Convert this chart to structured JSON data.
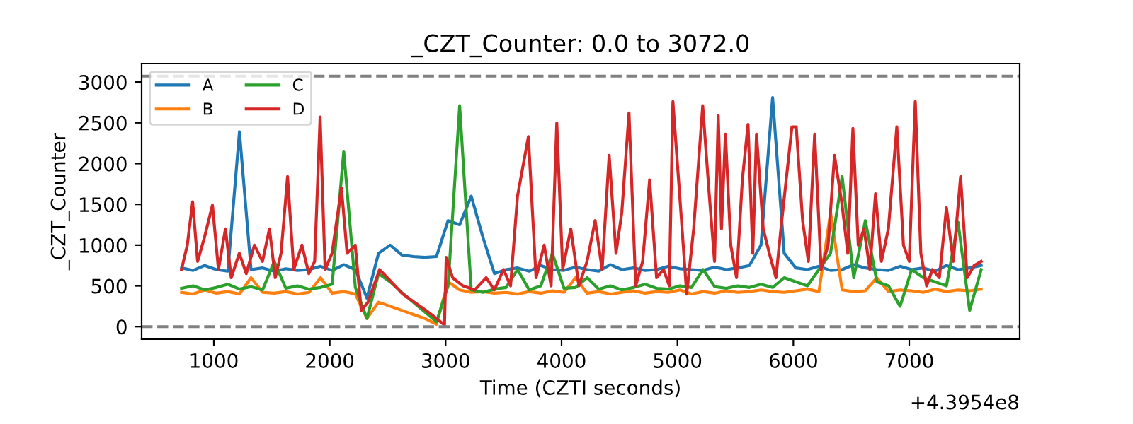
{
  "chart_data": {
    "type": "line",
    "title": "_CZT_Counter: 0.0 to 3072.0",
    "xlabel": "Time (CZTI seconds)",
    "ylabel": "_CZT_Counter",
    "annotations": [
      "+4.3954e8"
    ],
    "x": [
      721,
      821,
      921,
      1021,
      1121,
      1221,
      1321,
      1421,
      1521,
      1621,
      1721,
      1821,
      1921,
      2021,
      2121,
      2221,
      2321,
      2421,
      2521,
      2621,
      2721,
      2821,
      2921,
      3021,
      3121,
      3221,
      3321,
      3421,
      3521,
      3621,
      3721,
      3821,
      3921,
      4021,
      4121,
      4221,
      4321,
      4421,
      4521,
      4621,
      4721,
      4821,
      4921,
      5021,
      5121,
      5221,
      5321,
      5421,
      5521,
      5621,
      5721,
      5821,
      5921,
      6021,
      6121,
      6221,
      6321,
      6421,
      6521,
      6621,
      6721,
      6821,
      6921,
      7021,
      7121,
      7221,
      7321,
      7421,
      7521,
      7621
    ],
    "series": [
      {
        "name": "A",
        "color": "#1f77b4",
        "values": [
          720,
          690,
          750,
          700,
          680,
          2390,
          700,
          720,
          680,
          710,
          690,
          700,
          740,
          690,
          760,
          700,
          350,
          900,
          1000,
          880,
          860,
          850,
          860,
          1300,
          1250,
          1600,
          1100,
          650,
          700,
          720,
          680,
          750,
          700,
          690,
          730,
          700,
          680,
          760,
          700,
          720,
          690,
          700,
          740,
          710,
          700,
          690,
          730,
          700,
          720,
          750,
          1000,
          2810,
          900,
          720,
          700,
          740,
          690,
          700,
          760,
          720,
          700,
          690,
          740,
          700,
          720,
          680,
          750,
          700,
          720,
          750
        ]
      },
      {
        "name": "B",
        "color": "#ff7f0e",
        "values": [
          420,
          400,
          450,
          410,
          430,
          400,
          600,
          420,
          410,
          430,
          400,
          420,
          600,
          410,
          430,
          400,
          100,
          300,
          250,
          200,
          150,
          100,
          30,
          550,
          450,
          420,
          430,
          410,
          420,
          400,
          430,
          410,
          440,
          420,
          600,
          410,
          430,
          400,
          420,
          440,
          410,
          430,
          420,
          450,
          400,
          430,
          410,
          440,
          420,
          430,
          450,
          430,
          420,
          440,
          460,
          430,
          1400,
          450,
          430,
          440,
          600,
          430,
          450,
          440,
          420,
          460,
          430,
          450,
          440,
          460
        ]
      },
      {
        "name": "C",
        "color": "#2ca02c",
        "values": [
          470,
          500,
          450,
          480,
          520,
          460,
          490,
          450,
          800,
          470,
          500,
          460,
          480,
          520,
          2150,
          480,
          100,
          650,
          550,
          420,
          300,
          180,
          60,
          500,
          2710,
          450,
          420,
          460,
          480,
          700,
          450,
          500,
          900,
          470,
          480,
          600,
          460,
          500,
          450,
          480,
          520,
          470,
          460,
          500,
          480,
          700,
          490,
          470,
          500,
          480,
          520,
          480,
          600,
          550,
          500,
          700,
          900,
          1840,
          600,
          1300,
          550,
          500,
          250,
          700,
          600,
          550,
          500,
          1280,
          200,
          700
        ]
      },
      {
        "name": "D",
        "color": "#d62728",
        "x": [
          721,
          771,
          817,
          860,
          920,
          988,
          1040,
          1100,
          1150,
          1220,
          1280,
          1350,
          1420,
          1480,
          1530,
          1580,
          1636,
          1690,
          1760,
          1820,
          1870,
          1917,
          1960,
          2020,
          2101,
          2150,
          2220,
          2272,
          2330,
          2430,
          2530,
          2630,
          2730,
          2830,
          2921,
          2990,
          3005,
          3060,
          3150,
          3250,
          3350,
          3420,
          3500,
          3560,
          3620,
          3714,
          3780,
          3850,
          3910,
          3959,
          4010,
          4080,
          4150,
          4220,
          4290,
          4350,
          4411,
          4470,
          4520,
          4582,
          4640,
          4700,
          4760,
          4820,
          4880,
          4930,
          4961,
          5020,
          5080,
          5140,
          5218,
          5270,
          5320,
          5352,
          5380,
          5414,
          5460,
          5510,
          5560,
          5609,
          5650,
          5682,
          5740,
          5793,
          5850,
          5900,
          5988,
          6025,
          6080,
          6130,
          6184,
          6240,
          6300,
          6355,
          6420,
          6470,
          6514,
          6560,
          6610,
          6660,
          6709,
          6760,
          6820,
          6893,
          6950,
          7000,
          7052,
          7100,
          7150,
          7200,
          7260,
          7321,
          7380,
          7443,
          7500,
          7560,
          7621
        ],
        "values": [
          700,
          1000,
          1530,
          800,
          1100,
          1490,
          700,
          1200,
          600,
          900,
          650,
          1000,
          800,
          1200,
          600,
          900,
          1840,
          700,
          1000,
          650,
          800,
          2570,
          700,
          900,
          1700,
          900,
          1000,
          200,
          300,
          700,
          550,
          400,
          300,
          200,
          100,
          20,
          850,
          600,
          500,
          450,
          600,
          450,
          700,
          500,
          1600,
          2330,
          600,
          1000,
          500,
          2500,
          700,
          1200,
          500,
          800,
          1300,
          700,
          2100,
          900,
          1400,
          2620,
          500,
          800,
          1800,
          600,
          700,
          500,
          2760,
          1600,
          400,
          1200,
          2710,
          1700,
          800,
          2590,
          1200,
          2360,
          1000,
          600,
          1800,
          2480,
          900,
          2360,
          1200,
          900,
          600,
          1300,
          2450,
          2450,
          1300,
          800,
          2360,
          700,
          1000,
          2100,
          1500,
          900,
          2430,
          1000,
          1200,
          700,
          1630,
          800,
          1200,
          2450,
          1000,
          800,
          2760,
          900,
          500,
          700,
          600,
          1460,
          800,
          1840,
          600,
          750,
          800
        ]
      }
    ],
    "ref_lines": [
      {
        "axis": "y",
        "value": 0,
        "color": "#808080",
        "line_style": "dashed"
      },
      {
        "axis": "y",
        "value": 3072,
        "color": "#808080",
        "line_style": "dashed"
      }
    ],
    "xlim": [
      377,
      7953
    ],
    "ylim": [
      -154,
      3226
    ],
    "xticks": [
      1000,
      2000,
      3000,
      4000,
      5000,
      6000,
      7000
    ],
    "yticks": [
      0,
      500,
      1000,
      1500,
      2000,
      2500,
      3000
    ],
    "legend": "top left"
  }
}
